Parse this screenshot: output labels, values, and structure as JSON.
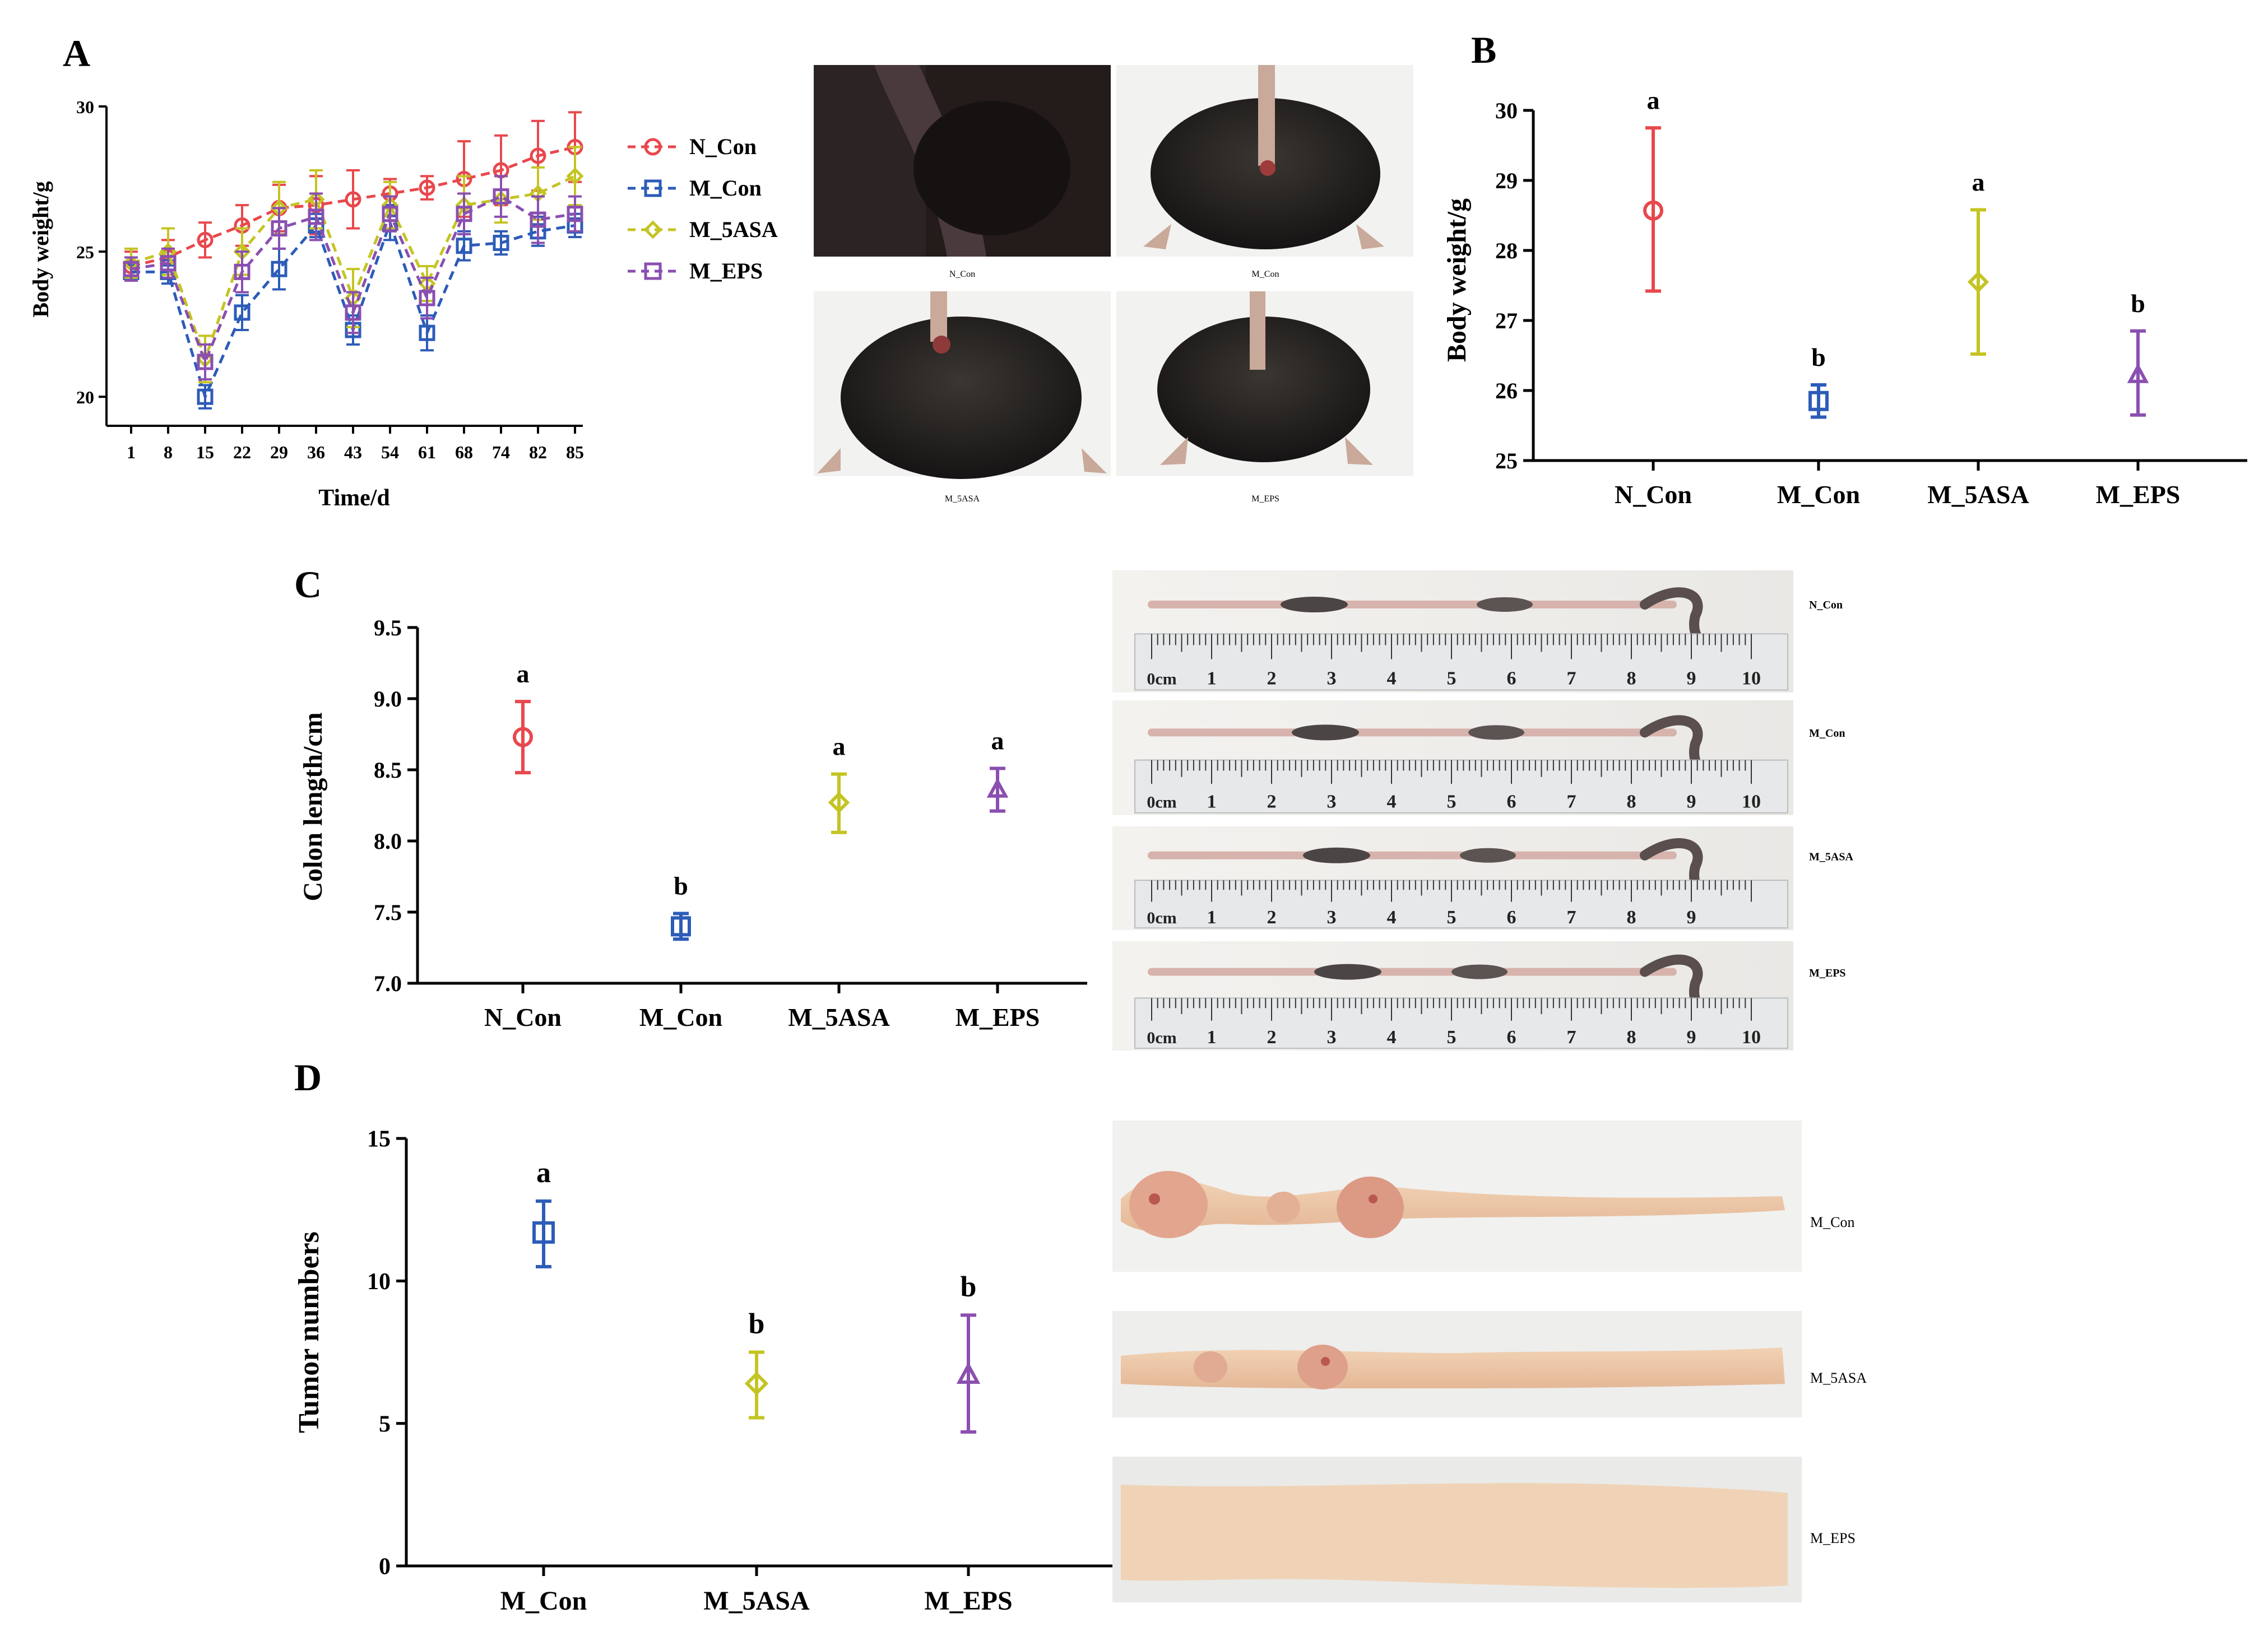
{
  "colors": {
    "N_Con": "#e8484d",
    "M_Con": "#2d5cb8",
    "M_5ASA": "#c4c423",
    "M_EPS": "#8a4fb0",
    "axis": "#000000"
  },
  "panels": {
    "A": {
      "letter": "A"
    },
    "B": {
      "letter": "B"
    },
    "C": {
      "letter": "C"
    },
    "D": {
      "letter": "D"
    }
  },
  "photos": {
    "mice": [
      {
        "label": "N_Con"
      },
      {
        "label": "M_Con"
      },
      {
        "label": "M_5ASA"
      },
      {
        "label": "M_EPS"
      }
    ],
    "colons": [
      {
        "label": "N_Con",
        "ruler": [
          "0cm",
          "1",
          "2",
          "3",
          "4",
          "5",
          "6",
          "7",
          "8",
          "9",
          "10"
        ]
      },
      {
        "label": "M_Con",
        "ruler": [
          "0cm",
          "1",
          "2",
          "3",
          "4",
          "5",
          "6",
          "7",
          "8",
          "9",
          "10"
        ]
      },
      {
        "label": "M_5ASA",
        "ruler": [
          "0cm",
          "1",
          "2",
          "3",
          "4",
          "5",
          "6",
          "7",
          "8",
          "9"
        ]
      },
      {
        "label": "M_EPS",
        "ruler": [
          "0cm",
          "1",
          "2",
          "3",
          "4",
          "5",
          "6",
          "7",
          "8",
          "9",
          "10"
        ]
      }
    ],
    "tumors": [
      {
        "label": "M_Con"
      },
      {
        "label": "M_5ASA"
      },
      {
        "label": "M_EPS"
      }
    ]
  },
  "chart_data": [
    {
      "id": "A",
      "type": "line",
      "xlabel": "Time/d",
      "ylabel": "Body weight/g",
      "x": [
        "1",
        "8",
        "15",
        "22",
        "29",
        "36",
        "43",
        "54",
        "61",
        "68",
        "74",
        "82",
        "85"
      ],
      "ylim": [
        19,
        30
      ],
      "yticks": [
        20,
        25,
        30
      ],
      "series": [
        {
          "name": "N_Con",
          "marker": "circle",
          "values": [
            24.5,
            24.8,
            25.4,
            25.9,
            26.5,
            26.6,
            26.8,
            27.0,
            27.2,
            27.5,
            27.8,
            28.3,
            28.6
          ],
          "errors": [
            0.5,
            0.6,
            0.6,
            0.7,
            0.8,
            1.0,
            1.0,
            0.5,
            0.4,
            1.3,
            1.2,
            1.2,
            1.2
          ]
        },
        {
          "name": "M_Con",
          "marker": "square",
          "values": [
            24.3,
            24.3,
            20.0,
            22.9,
            24.4,
            25.9,
            22.3,
            26.0,
            22.2,
            25.2,
            25.3,
            25.7,
            25.9
          ],
          "errors": [
            0.3,
            0.4,
            0.4,
            0.6,
            0.7,
            0.4,
            0.5,
            0.6,
            0.6,
            0.5,
            0.4,
            0.5,
            0.4
          ]
        },
        {
          "name": "M_5ASA",
          "marker": "diamond",
          "values": [
            24.6,
            25.0,
            21.3,
            25.0,
            26.5,
            26.8,
            23.4,
            26.6,
            23.9,
            26.6,
            26.8,
            27.0,
            27.6
          ],
          "errors": [
            0.5,
            0.8,
            0.8,
            0.8,
            0.9,
            1.0,
            1.0,
            0.8,
            0.6,
            1.0,
            0.8,
            0.9,
            1.0
          ]
        },
        {
          "name": "M_EPS",
          "marker": "square",
          "values": [
            24.4,
            24.6,
            21.2,
            24.3,
            25.8,
            26.2,
            22.9,
            26.3,
            23.4,
            26.3,
            26.9,
            26.1,
            26.3
          ],
          "errors": [
            0.4,
            0.5,
            0.6,
            0.7,
            0.7,
            0.8,
            0.7,
            0.6,
            0.7,
            0.7,
            0.7,
            0.8,
            0.6
          ]
        }
      ],
      "legend_position": "right"
    },
    {
      "id": "B",
      "type": "scatter",
      "xlabel": "",
      "ylabel": "Body weight/g",
      "categories": [
        "N_Con",
        "M_Con",
        "M_5ASA",
        "M_EPS"
      ],
      "ylim": [
        25,
        30
      ],
      "yticks": [
        25,
        26,
        27,
        28,
        29,
        30
      ],
      "points": [
        {
          "group": "N_Con",
          "marker": "circle",
          "mean": 28.57,
          "low": 27.42,
          "high": 29.75,
          "letter": "a"
        },
        {
          "group": "M_Con",
          "marker": "square",
          "mean": 25.85,
          "low": 25.62,
          "high": 26.08,
          "letter": "b"
        },
        {
          "group": "M_5ASA",
          "marker": "diamond",
          "mean": 27.55,
          "low": 26.52,
          "high": 28.58,
          "letter": "a"
        },
        {
          "group": "M_EPS",
          "marker": "triangle",
          "mean": 26.22,
          "low": 25.65,
          "high": 26.85,
          "letter": "b"
        }
      ]
    },
    {
      "id": "C",
      "type": "scatter",
      "xlabel": "",
      "ylabel": "Colon length/cm",
      "categories": [
        "N_Con",
        "M_Con",
        "M_5ASA",
        "M_EPS"
      ],
      "ylim": [
        7.0,
        9.5
      ],
      "yticks": [
        "7.0",
        "7.5",
        "8.0",
        "8.5",
        "9.0",
        "9.5"
      ],
      "points": [
        {
          "group": "N_Con",
          "marker": "circle",
          "mean": 8.73,
          "low": 8.48,
          "high": 8.98,
          "letter": "a"
        },
        {
          "group": "M_Con",
          "marker": "square",
          "mean": 7.4,
          "low": 7.31,
          "high": 7.49,
          "letter": "b"
        },
        {
          "group": "M_5ASA",
          "marker": "diamond",
          "mean": 8.27,
          "low": 8.06,
          "high": 8.47,
          "letter": "a"
        },
        {
          "group": "M_EPS",
          "marker": "triangle",
          "mean": 8.36,
          "low": 8.21,
          "high": 8.51,
          "letter": "a"
        }
      ]
    },
    {
      "id": "D",
      "type": "scatter",
      "xlabel": "",
      "ylabel": "Tumor numbers",
      "categories": [
        "M_Con",
        "M_5ASA",
        "M_EPS"
      ],
      "ylim": [
        0,
        15
      ],
      "yticks": [
        0,
        5,
        10,
        15
      ],
      "points": [
        {
          "group": "M_Con",
          "marker": "square",
          "mean": 11.7,
          "low": 10.5,
          "high": 12.8,
          "letter": "a"
        },
        {
          "group": "M_5ASA",
          "marker": "diamond",
          "mean": 6.4,
          "low": 5.2,
          "high": 7.5,
          "letter": "b"
        },
        {
          "group": "M_EPS",
          "marker": "triangle",
          "mean": 6.7,
          "low": 4.7,
          "high": 8.8,
          "letter": "b"
        }
      ]
    }
  ]
}
